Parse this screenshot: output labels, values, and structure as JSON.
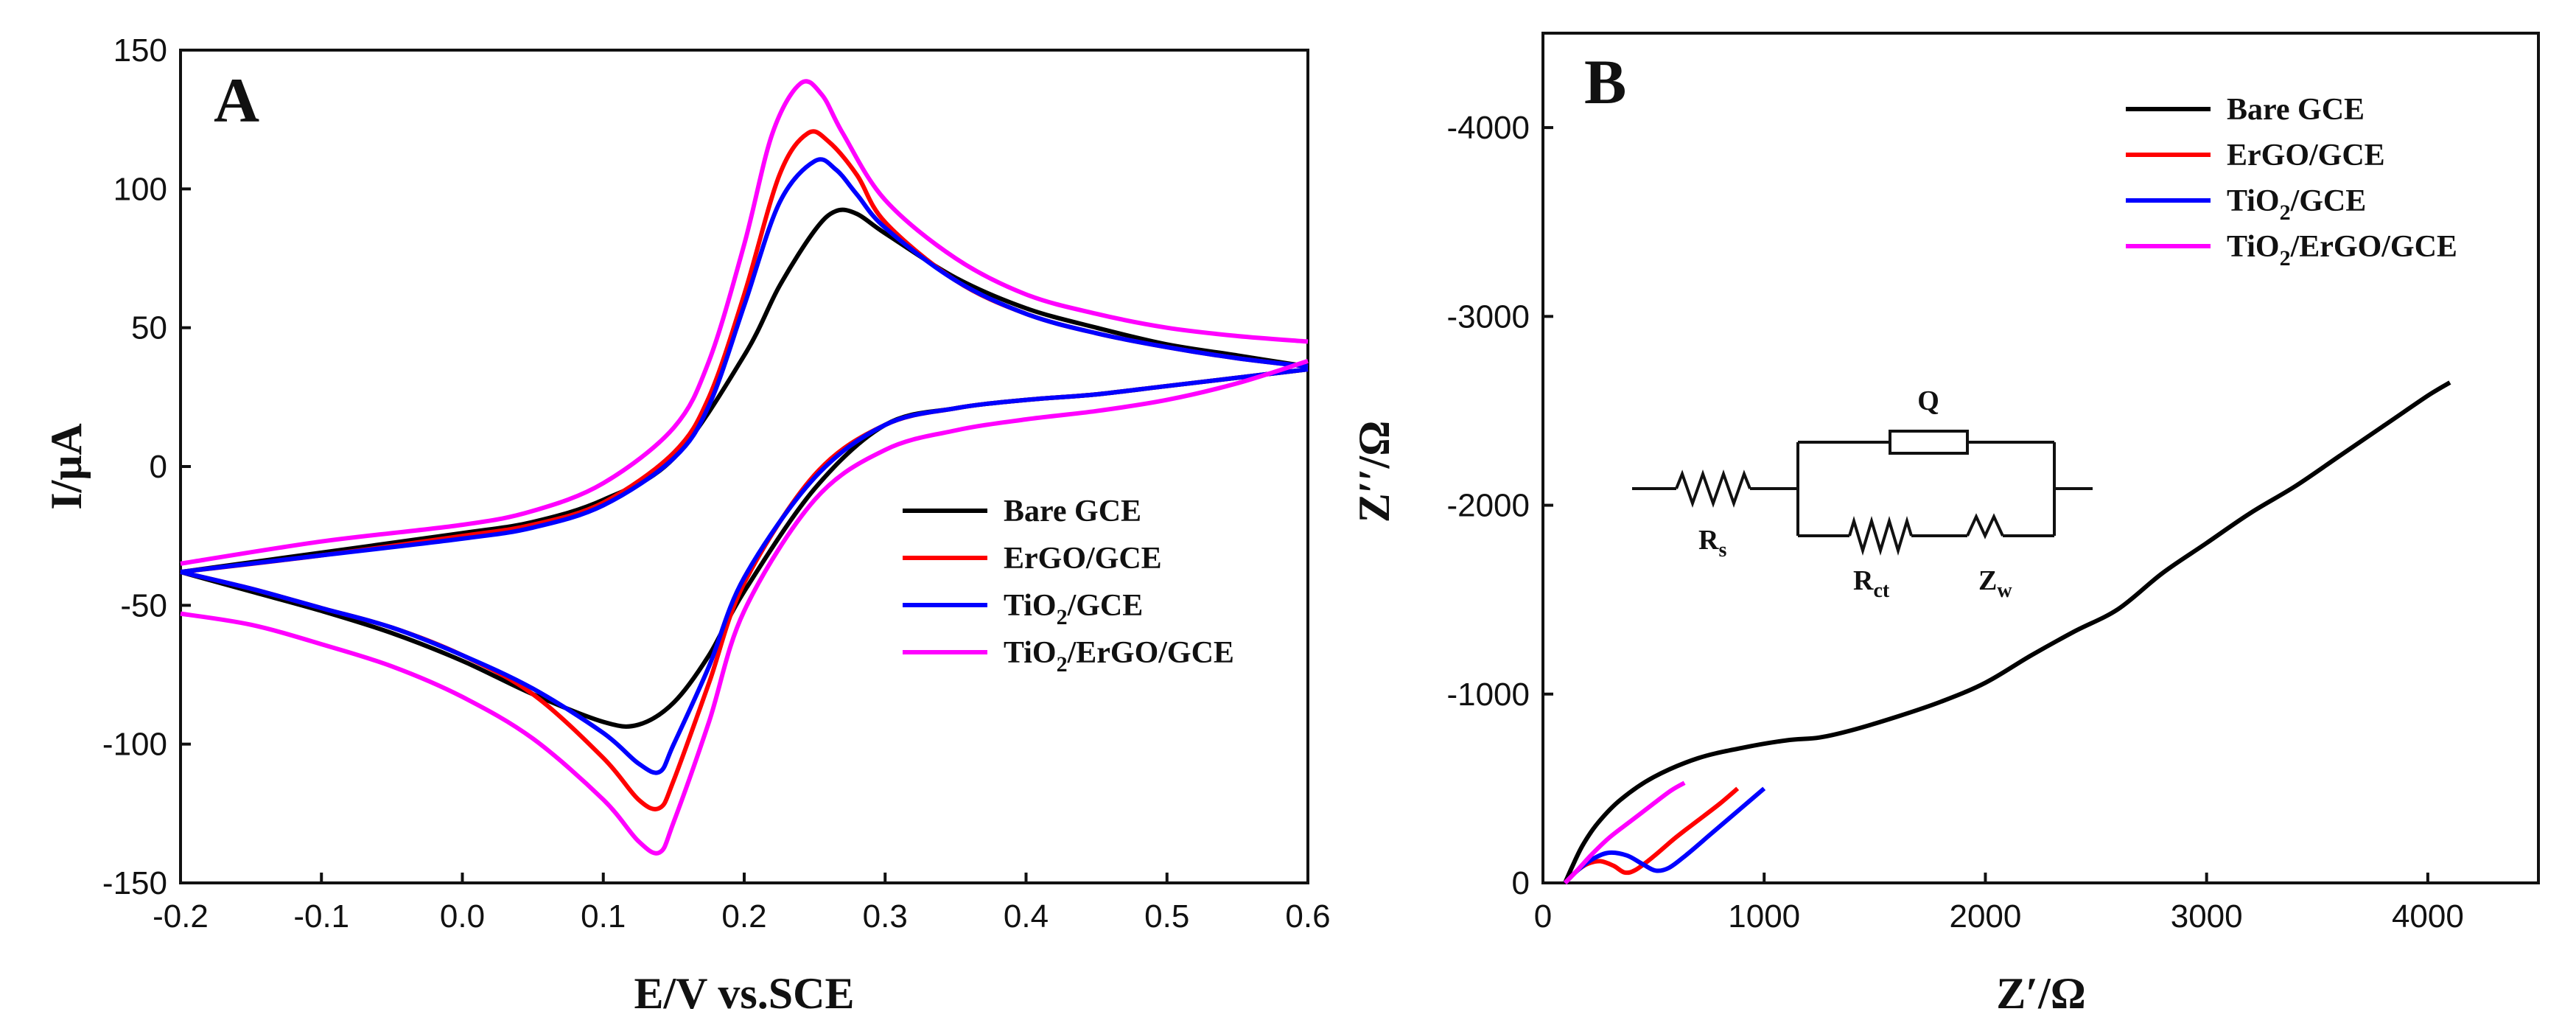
{
  "chart_data": [
    {
      "type": "line",
      "panel_label": "A",
      "xlabel": "E/V vs.SCE",
      "ylabel": "I/μA",
      "xlim": [
        -0.2,
        0.6
      ],
      "ylim": [
        -150,
        150
      ],
      "x_ticks": [
        -0.2,
        -0.1,
        0.0,
        0.1,
        0.2,
        0.3,
        0.4,
        0.5,
        0.6
      ],
      "x_tick_labels": [
        "-0.2",
        "-0.1",
        "0.0",
        "0.1",
        "0.2",
        "0.3",
        "0.4",
        "0.5",
        "0.6"
      ],
      "y_ticks": [
        -150,
        -100,
        -50,
        0,
        50,
        100,
        150
      ],
      "y_tick_labels": [
        "-150",
        "-100",
        "-50",
        "0",
        "50",
        "100",
        "150"
      ],
      "grid": false,
      "legend_position": "lower-right",
      "series": [
        {
          "name": "Bare GCE",
          "sub": "",
          "name_end": "",
          "color": "#000000",
          "forward": [
            [
              -0.2,
              -38
            ],
            [
              -0.1,
              -31
            ],
            [
              0.0,
              -24
            ],
            [
              0.05,
              -20
            ],
            [
              0.1,
              -12
            ],
            [
              0.15,
              3
            ],
            [
              0.2,
              40
            ],
            [
              0.225,
              65
            ],
            [
              0.25,
              85
            ],
            [
              0.265,
              92
            ],
            [
              0.28,
              91
            ],
            [
              0.3,
              84
            ],
            [
              0.35,
              68
            ],
            [
              0.4,
              57
            ],
            [
              0.45,
              50
            ],
            [
              0.5,
              44
            ],
            [
              0.55,
              40
            ],
            [
              0.6,
              36
            ]
          ],
          "reverse": [
            [
              0.6,
              35
            ],
            [
              0.55,
              32
            ],
            [
              0.5,
              29
            ],
            [
              0.45,
              26
            ],
            [
              0.4,
              24
            ],
            [
              0.35,
              21
            ],
            [
              0.3,
              15
            ],
            [
              0.25,
              -8
            ],
            [
              0.2,
              -45
            ],
            [
              0.175,
              -68
            ],
            [
              0.15,
              -85
            ],
            [
              0.125,
              -93
            ],
            [
              0.1,
              -92
            ],
            [
              0.05,
              -82
            ],
            [
              0.0,
              -70
            ],
            [
              -0.05,
              -60
            ],
            [
              -0.1,
              -52
            ],
            [
              -0.15,
              -45
            ],
            [
              -0.2,
              -38
            ]
          ]
        },
        {
          "name": "ErGO/GCE",
          "sub": "",
          "name_end": "",
          "color": "#ff0000",
          "forward": [
            [
              -0.2,
              -38
            ],
            [
              -0.1,
              -32
            ],
            [
              0.0,
              -25
            ],
            [
              0.05,
              -21
            ],
            [
              0.1,
              -13
            ],
            [
              0.15,
              5
            ],
            [
              0.175,
              25
            ],
            [
              0.2,
              62
            ],
            [
              0.225,
              105
            ],
            [
              0.245,
              120
            ],
            [
              0.26,
              117
            ],
            [
              0.28,
              105
            ],
            [
              0.3,
              88
            ],
            [
              0.35,
              67
            ],
            [
              0.4,
              55
            ],
            [
              0.45,
              48
            ],
            [
              0.5,
              43
            ],
            [
              0.55,
              39
            ],
            [
              0.6,
              36
            ]
          ],
          "reverse": [
            [
              0.6,
              35
            ],
            [
              0.55,
              32
            ],
            [
              0.5,
              29
            ],
            [
              0.45,
              26
            ],
            [
              0.4,
              24
            ],
            [
              0.35,
              21
            ],
            [
              0.3,
              15
            ],
            [
              0.25,
              -3
            ],
            [
              0.2,
              -42
            ],
            [
              0.175,
              -78
            ],
            [
              0.15,
              -113
            ],
            [
              0.14,
              -123
            ],
            [
              0.125,
              -120
            ],
            [
              0.1,
              -105
            ],
            [
              0.05,
              -82
            ],
            [
              0.0,
              -68
            ],
            [
              -0.05,
              -58
            ],
            [
              -0.1,
              -51
            ],
            [
              -0.15,
              -44
            ],
            [
              -0.2,
              -38
            ]
          ]
        },
        {
          "name": "TiO",
          "sub": "2",
          "name_end": "/GCE",
          "color": "#0000ff",
          "forward": [
            [
              -0.2,
              -38
            ],
            [
              -0.1,
              -32
            ],
            [
              0.0,
              -26
            ],
            [
              0.05,
              -22
            ],
            [
              0.1,
              -14
            ],
            [
              0.15,
              3
            ],
            [
              0.175,
              22
            ],
            [
              0.2,
              58
            ],
            [
              0.225,
              95
            ],
            [
              0.25,
              110
            ],
            [
              0.265,
              107
            ],
            [
              0.28,
              98
            ],
            [
              0.3,
              86
            ],
            [
              0.35,
              67
            ],
            [
              0.4,
              55
            ],
            [
              0.45,
              48
            ],
            [
              0.5,
              43
            ],
            [
              0.55,
              39
            ],
            [
              0.6,
              36
            ]
          ],
          "reverse": [
            [
              0.6,
              35
            ],
            [
              0.55,
              32
            ],
            [
              0.5,
              29
            ],
            [
              0.45,
              26
            ],
            [
              0.4,
              24
            ],
            [
              0.35,
              21
            ],
            [
              0.3,
              15
            ],
            [
              0.25,
              -4
            ],
            [
              0.2,
              -40
            ],
            [
              0.175,
              -72
            ],
            [
              0.15,
              -100
            ],
            [
              0.14,
              -110
            ],
            [
              0.125,
              -107
            ],
            [
              0.1,
              -96
            ],
            [
              0.05,
              -80
            ],
            [
              0.0,
              -68
            ],
            [
              -0.05,
              -58
            ],
            [
              -0.1,
              -51
            ],
            [
              -0.15,
              -44
            ],
            [
              -0.2,
              -38
            ]
          ]
        },
        {
          "name": "TiO",
          "sub": "2",
          "name_end": "/ErGO/GCE",
          "color": "#ff00ff",
          "forward": [
            [
              -0.2,
              -35
            ],
            [
              -0.1,
              -27
            ],
            [
              0.0,
              -21
            ],
            [
              0.05,
              -16
            ],
            [
              0.1,
              -6
            ],
            [
              0.15,
              14
            ],
            [
              0.175,
              38
            ],
            [
              0.2,
              80
            ],
            [
              0.22,
              120
            ],
            [
              0.24,
              138
            ],
            [
              0.255,
              134
            ],
            [
              0.27,
              120
            ],
            [
              0.3,
              96
            ],
            [
              0.35,
              75
            ],
            [
              0.4,
              62
            ],
            [
              0.45,
              55
            ],
            [
              0.5,
              50
            ],
            [
              0.55,
              47
            ],
            [
              0.6,
              45
            ]
          ],
          "reverse": [
            [
              0.6,
              38
            ],
            [
              0.55,
              30
            ],
            [
              0.5,
              24
            ],
            [
              0.45,
              20
            ],
            [
              0.4,
              17
            ],
            [
              0.35,
              13
            ],
            [
              0.3,
              6
            ],
            [
              0.25,
              -12
            ],
            [
              0.2,
              -52
            ],
            [
              0.175,
              -92
            ],
            [
              0.15,
              -128
            ],
            [
              0.14,
              -139
            ],
            [
              0.125,
              -135
            ],
            [
              0.1,
              -120
            ],
            [
              0.05,
              -98
            ],
            [
              0.0,
              -83
            ],
            [
              -0.05,
              -72
            ],
            [
              -0.1,
              -64
            ],
            [
              -0.15,
              -57
            ],
            [
              -0.2,
              -53
            ]
          ]
        }
      ]
    },
    {
      "type": "line",
      "panel_label": "B",
      "xlabel": "Z′/Ω",
      "ylabel": "Z′′/Ω",
      "xlim": [
        0,
        4500
      ],
      "ylim": [
        0,
        -4500
      ],
      "x_ticks": [
        0,
        1000,
        2000,
        3000,
        4000
      ],
      "x_tick_labels": [
        "0",
        "1000",
        "2000",
        "3000",
        "4000"
      ],
      "y_ticks": [
        0,
        -1000,
        -2000,
        -3000,
        -4000
      ],
      "y_tick_labels": [
        "0",
        "-1000",
        "-2000",
        "-3000",
        "-4000"
      ],
      "grid": false,
      "legend_position": "top-right",
      "series": [
        {
          "name": "Bare GCE",
          "sub": "",
          "name_end": "",
          "color": "#000000",
          "points": [
            [
              100,
              0
            ],
            [
              130,
              -80
            ],
            [
              180,
              -200
            ],
            [
              250,
              -320
            ],
            [
              350,
              -440
            ],
            [
              500,
              -560
            ],
            [
              700,
              -660
            ],
            [
              900,
              -715
            ],
            [
              1100,
              -755
            ],
            [
              1250,
              -770
            ],
            [
              1400,
              -810
            ],
            [
              1600,
              -880
            ],
            [
              1800,
              -960
            ],
            [
              2000,
              -1060
            ],
            [
              2200,
              -1200
            ],
            [
              2400,
              -1330
            ],
            [
              2600,
              -1450
            ],
            [
              2800,
              -1640
            ],
            [
              3000,
              -1800
            ],
            [
              3200,
              -1960
            ],
            [
              3400,
              -2100
            ],
            [
              3600,
              -2260
            ],
            [
              3800,
              -2420
            ],
            [
              4000,
              -2580
            ],
            [
              4100,
              -2650
            ]
          ]
        },
        {
          "name": "ErGO/GCE",
          "sub": "",
          "name_end": "",
          "color": "#ff0000",
          "points": [
            [
              100,
              0
            ],
            [
              150,
              -60
            ],
            [
              200,
              -100
            ],
            [
              260,
              -115
            ],
            [
              320,
              -90
            ],
            [
              370,
              -55
            ],
            [
              420,
              -70
            ],
            [
              500,
              -140
            ],
            [
              600,
              -240
            ],
            [
              700,
              -330
            ],
            [
              800,
              -420
            ],
            [
              880,
              -500
            ]
          ]
        },
        {
          "name": "TiO",
          "sub": "2",
          "name_end": "/GCE",
          "color": "#0000ff",
          "points": [
            [
              100,
              0
            ],
            [
              160,
              -70
            ],
            [
              230,
              -130
            ],
            [
              300,
              -160
            ],
            [
              380,
              -145
            ],
            [
              450,
              -100
            ],
            [
              510,
              -65
            ],
            [
              570,
              -80
            ],
            [
              650,
              -150
            ],
            [
              750,
              -250
            ],
            [
              850,
              -350
            ],
            [
              950,
              -450
            ],
            [
              1000,
              -500
            ]
          ]
        },
        {
          "name": "TiO",
          "sub": "2",
          "name_end": "/ErGO/GCE",
          "color": "#ff00ff",
          "points": [
            [
              100,
              0
            ],
            [
              150,
              -60
            ],
            [
              220,
              -150
            ],
            [
              300,
              -240
            ],
            [
              400,
              -330
            ],
            [
              500,
              -420
            ],
            [
              580,
              -490
            ],
            [
              640,
              -530
            ]
          ]
        }
      ],
      "inset_circuit": {
        "labels": {
          "rs_main": "R",
          "rs_sub": "s",
          "q": "Q",
          "rct_main": "R",
          "rct_sub": "ct",
          "zw_main": "Z",
          "zw_sub": "w"
        }
      }
    }
  ]
}
